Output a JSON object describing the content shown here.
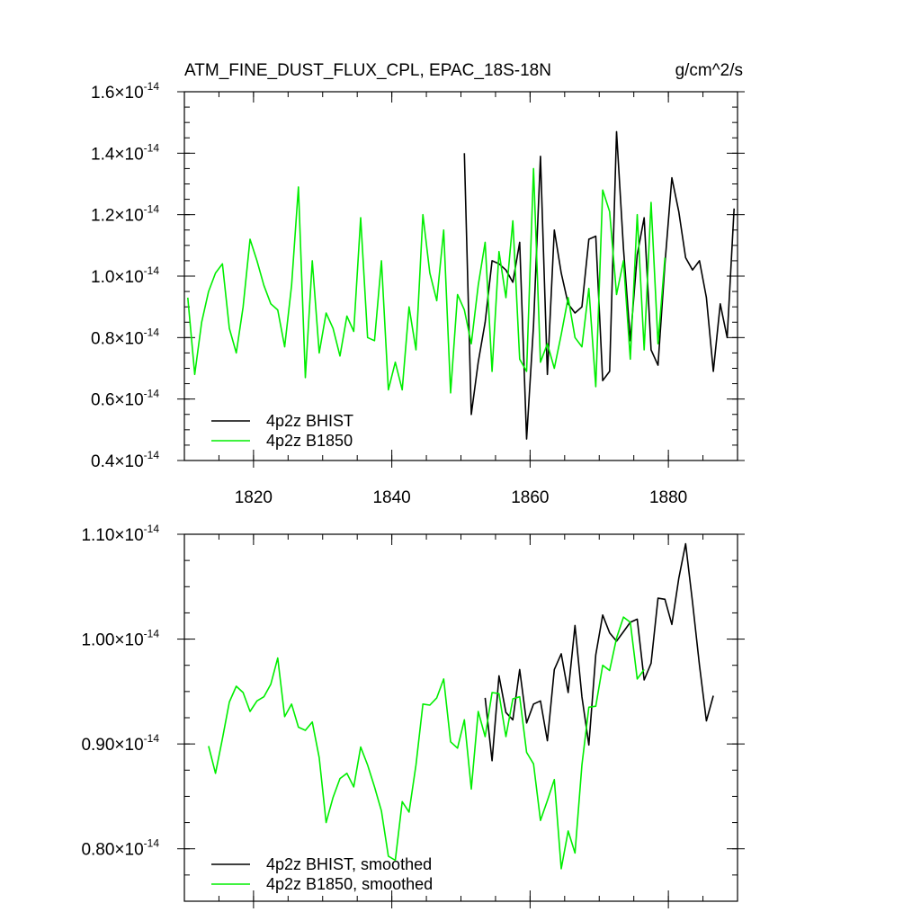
{
  "colors": {
    "bhist": "#000000",
    "b1850": "#00ee00"
  },
  "chart_data": [
    {
      "type": "line",
      "title": "ATM_FINE_DUST_FLUX_CPL, EPAC_18S-18N",
      "units": "g/cm^2/s",
      "xlim": [
        1810,
        1890
      ],
      "ylim": [
        0.4,
        1.6
      ],
      "y_scale_label": "10",
      "y_exponent": "-14",
      "x_ticks": [
        {
          "v": 1820,
          "label": "1820"
        },
        {
          "v": 1840,
          "label": "1840"
        },
        {
          "v": 1860,
          "label": "1860"
        },
        {
          "v": 1880,
          "label": "1880"
        }
      ],
      "x_minor_step": 5,
      "y_ticks": [
        {
          "v": 0.4,
          "label": "0.4"
        },
        {
          "v": 0.6,
          "label": "0.6"
        },
        {
          "v": 0.8,
          "label": "0.8"
        },
        {
          "v": 1.0,
          "label": "1.0"
        },
        {
          "v": 1.2,
          "label": "1.2"
        },
        {
          "v": 1.4,
          "label": "1.4"
        },
        {
          "v": 1.6,
          "label": "1.6"
        }
      ],
      "y_minor_step": 0.05,
      "legend_position": "bottom-left",
      "series": [
        {
          "name": "4p2z BHIST",
          "color_key": "bhist",
          "x": [
            1850.5,
            1851.5,
            1852.5,
            1853.5,
            1854.5,
            1855.5,
            1856.5,
            1857.5,
            1858.5,
            1859.5,
            1860.5,
            1861.5,
            1862.5,
            1863.5,
            1864.5,
            1865.5,
            1866.5,
            1867.5,
            1868.5,
            1869.5,
            1870.5,
            1871.5,
            1872.5,
            1873.5,
            1874.5,
            1875.5,
            1876.5,
            1877.5,
            1878.5,
            1879.5,
            1880.5,
            1881.5,
            1882.5,
            1883.5,
            1884.5,
            1885.5,
            1886.5,
            1887.5,
            1888.5,
            1889.5
          ],
          "y": [
            1.4,
            0.55,
            0.72,
            0.85,
            1.05,
            1.04,
            1.02,
            0.98,
            1.11,
            0.47,
            0.84,
            1.39,
            0.68,
            1.15,
            1.01,
            0.91,
            0.88,
            0.9,
            1.12,
            1.13,
            0.66,
            0.69,
            1.47,
            1.09,
            0.79,
            1.07,
            1.19,
            0.76,
            0.71,
            1.04,
            1.32,
            1.21,
            1.06,
            1.02,
            1.05,
            0.93,
            0.69,
            0.91,
            0.8,
            1.22
          ]
        },
        {
          "name": "4p2z B1850",
          "color_key": "b1850",
          "x": [
            1810.5,
            1811.5,
            1812.5,
            1813.5,
            1814.5,
            1815.5,
            1816.5,
            1817.5,
            1818.5,
            1819.5,
            1820.5,
            1821.5,
            1822.5,
            1823.5,
            1824.5,
            1825.5,
            1826.5,
            1827.5,
            1828.5,
            1829.5,
            1830.5,
            1831.5,
            1832.5,
            1833.5,
            1834.5,
            1835.5,
            1836.5,
            1837.5,
            1838.5,
            1839.5,
            1840.5,
            1841.5,
            1842.5,
            1843.5,
            1844.5,
            1845.5,
            1846.5,
            1847.5,
            1848.5,
            1849.5,
            1850.5,
            1851.5,
            1852.5,
            1853.5,
            1854.5,
            1855.5,
            1856.5,
            1857.5,
            1858.5,
            1859.5,
            1860.5,
            1861.5,
            1862.5,
            1863.5,
            1864.5,
            1865.5,
            1866.5,
            1867.5,
            1868.5,
            1869.5,
            1870.5,
            1871.5,
            1872.5,
            1873.5,
            1874.5,
            1875.5,
            1876.5,
            1877.5,
            1878.5,
            1879.5
          ],
          "y": [
            0.93,
            0.68,
            0.85,
            0.95,
            1.01,
            1.04,
            0.83,
            0.75,
            0.9,
            1.12,
            1.05,
            0.97,
            0.91,
            0.89,
            0.77,
            0.97,
            1.29,
            0.67,
            1.05,
            0.75,
            0.88,
            0.83,
            0.74,
            0.87,
            0.82,
            1.19,
            0.8,
            0.79,
            1.05,
            0.63,
            0.72,
            0.63,
            0.9,
            0.76,
            1.2,
            1.01,
            0.92,
            1.15,
            0.62,
            0.94,
            0.89,
            0.78,
            0.97,
            1.11,
            0.69,
            1.08,
            0.93,
            1.18,
            0.73,
            0.69,
            1.35,
            0.72,
            0.78,
            0.7,
            0.81,
            0.93,
            0.8,
            0.77,
            0.96,
            0.64,
            1.28,
            1.21,
            0.94,
            1.05,
            0.73,
            1.2,
            0.76,
            1.24,
            0.78,
            1.06
          ]
        }
      ]
    },
    {
      "type": "line",
      "xlim": [
        1810,
        1890
      ],
      "ylim": [
        0.75,
        1.1
      ],
      "y_scale_label": "10",
      "y_exponent": "-14",
      "x_ticks": [
        {
          "v": 1820,
          "label": ""
        },
        {
          "v": 1840,
          "label": ""
        },
        {
          "v": 1860,
          "label": ""
        },
        {
          "v": 1880,
          "label": ""
        }
      ],
      "x_minor_step": 5,
      "y_ticks": [
        {
          "v": 0.8,
          "label": "0.80"
        },
        {
          "v": 0.9,
          "label": "0.90"
        },
        {
          "v": 1.0,
          "label": "1.00"
        },
        {
          "v": 1.1,
          "label": "1.10"
        }
      ],
      "y_minor_step": 0.025,
      "legend_position": "bottom-left",
      "series": [
        {
          "name": "4p2z BHIST, smoothed",
          "color_key": "bhist",
          "x": [
            1853.5,
            1854.5,
            1855.5,
            1856.5,
            1857.5,
            1858.5,
            1859.5,
            1860.5,
            1861.5,
            1862.5,
            1863.5,
            1864.5,
            1865.5,
            1866.5,
            1867.5,
            1868.5,
            1869.5,
            1870.5,
            1871.5,
            1872.5,
            1873.5,
            1874.5,
            1875.5,
            1876.5,
            1877.5,
            1878.5,
            1879.5,
            1880.5,
            1881.5,
            1882.5,
            1883.5,
            1884.5,
            1885.5,
            1886.5
          ],
          "y": [
            0.944,
            0.884,
            0.965,
            0.93,
            0.923,
            0.971,
            0.92,
            0.938,
            0.941,
            0.903,
            0.971,
            0.986,
            0.949,
            1.013,
            0.945,
            0.899,
            0.985,
            1.023,
            1.006,
            0.998,
            1.007,
            1.016,
            1.019,
            0.961,
            0.977,
            1.039,
            1.038,
            1.014,
            1.058,
            1.091,
            1.035,
            0.975,
            0.922,
            0.946
          ]
        },
        {
          "name": "4p2z B1850, smoothed",
          "color_key": "b1850",
          "x": [
            1813.5,
            1814.5,
            1815.5,
            1816.5,
            1817.5,
            1818.5,
            1819.5,
            1820.5,
            1821.5,
            1822.5,
            1823.5,
            1824.5,
            1825.5,
            1826.5,
            1827.5,
            1828.5,
            1829.5,
            1830.5,
            1831.5,
            1832.5,
            1833.5,
            1834.5,
            1835.5,
            1836.5,
            1837.5,
            1838.5,
            1839.5,
            1840.5,
            1841.5,
            1842.5,
            1843.5,
            1844.5,
            1845.5,
            1846.5,
            1847.5,
            1848.5,
            1849.5,
            1850.5,
            1851.5,
            1852.5,
            1853.5,
            1854.5,
            1855.5,
            1856.5,
            1857.5,
            1858.5,
            1859.5,
            1860.5,
            1861.5,
            1862.5,
            1863.5,
            1864.5,
            1865.5,
            1866.5,
            1867.5,
            1868.5,
            1869.5,
            1870.5,
            1871.5,
            1872.5,
            1873.5,
            1874.5,
            1875.5,
            1876.5
          ],
          "y": [
            0.898,
            0.872,
            0.905,
            0.94,
            0.955,
            0.949,
            0.931,
            0.941,
            0.945,
            0.957,
            0.982,
            0.926,
            0.938,
            0.916,
            0.913,
            0.921,
            0.887,
            0.825,
            0.849,
            0.867,
            0.872,
            0.859,
            0.897,
            0.88,
            0.859,
            0.836,
            0.793,
            0.789,
            0.845,
            0.835,
            0.88,
            0.938,
            0.937,
            0.944,
            0.962,
            0.902,
            0.896,
            0.923,
            0.857,
            0.931,
            0.907,
            0.949,
            0.948,
            0.907,
            0.943,
            0.945,
            0.892,
            0.881,
            0.827,
            0.846,
            0.866,
            0.781,
            0.817,
            0.796,
            0.88,
            0.935,
            0.936,
            0.975,
            0.97,
            1.001,
            1.021,
            1.016,
            0.962,
            0.971
          ]
        }
      ]
    }
  ]
}
